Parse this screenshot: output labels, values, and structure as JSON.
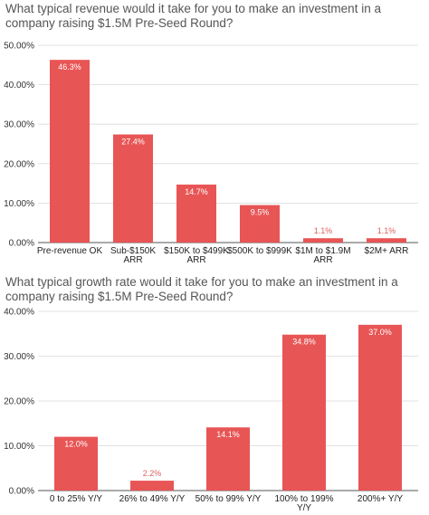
{
  "chart_data": [
    {
      "type": "bar",
      "title": "What typical revenue would it take for you to make an investment in a company raising $1.5M Pre-Seed Round?",
      "categories": [
        [
          "Pre-revenue OK"
        ],
        [
          "Sub-$150K",
          "ARR"
        ],
        [
          "$150K to $499K",
          "ARR"
        ],
        [
          "$500K to $999K"
        ],
        [
          "$1M to $1.9M",
          "ARR"
        ],
        [
          "$2M+ ARR"
        ]
      ],
      "values": [
        46.3,
        27.4,
        14.7,
        9.5,
        1.1,
        1.1
      ],
      "value_labels": [
        "46.3%",
        "27.4%",
        "14.7%",
        "9.5%",
        "1.1%",
        "1.1%"
      ],
      "yticks": [
        "0.00%",
        "10.00%",
        "20.00%",
        "30.00%",
        "40.00%",
        "50.00%"
      ],
      "ylim": [
        0,
        50
      ],
      "xlabel": "",
      "ylabel": "",
      "bar_color": "#e85555",
      "grid": true
    },
    {
      "type": "bar",
      "title": "What typical growth rate would it take for you to make an investment in a company raising $1.5M Pre-Seed Round?",
      "categories": [
        [
          "0 to 25% Y/Y"
        ],
        [
          "26% to 49% Y/Y"
        ],
        [
          "50% to 99% Y/Y"
        ],
        [
          "100% to 199%",
          "Y/Y"
        ],
        [
          "200%+ Y/Y"
        ]
      ],
      "values": [
        12.0,
        2.2,
        14.1,
        34.8,
        37.0
      ],
      "value_labels": [
        "12.0%",
        "2.2%",
        "14.1%",
        "34.8%",
        "37.0%"
      ],
      "yticks": [
        "0.00%",
        "10.00%",
        "20.00%",
        "30.00%",
        "40.00%"
      ],
      "ylim": [
        0,
        40
      ],
      "xlabel": "",
      "ylabel": "",
      "bar_color": "#e85555",
      "grid": true
    }
  ]
}
